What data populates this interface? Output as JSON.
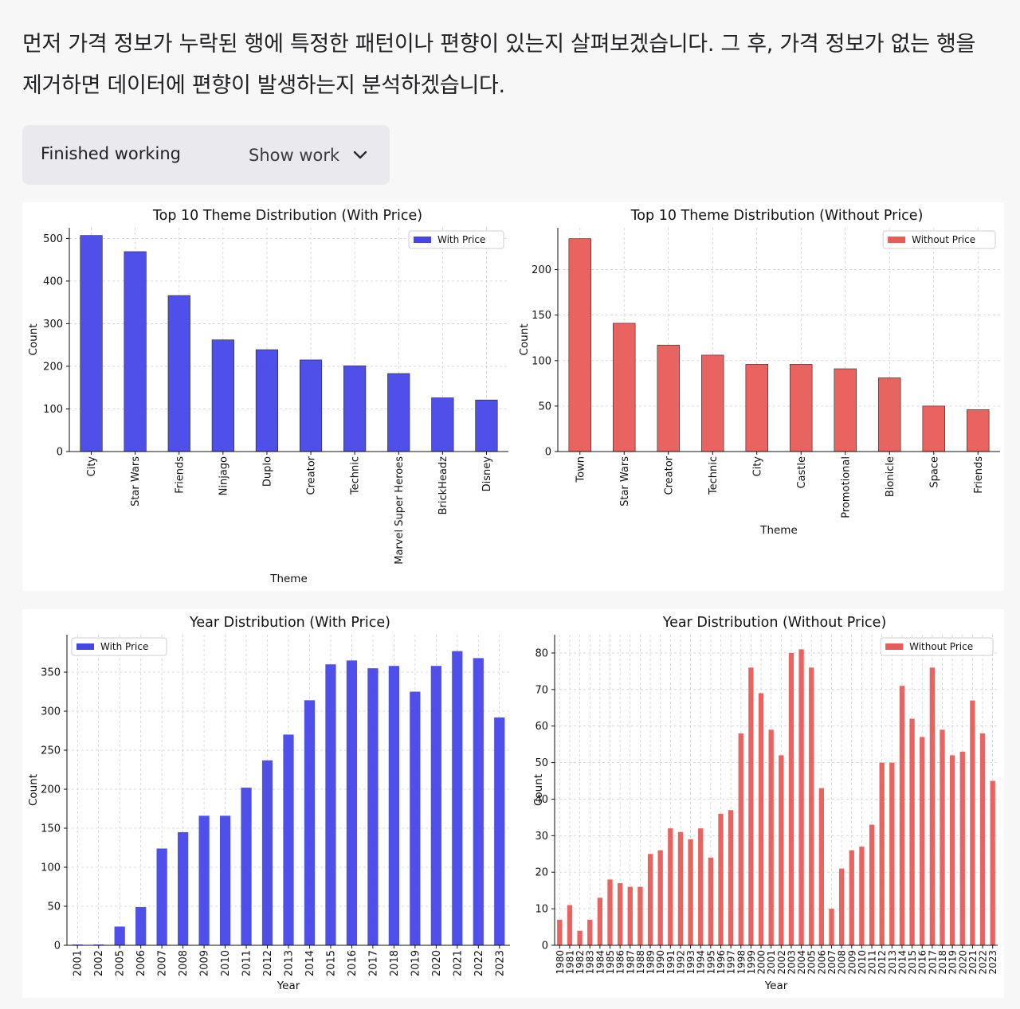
{
  "message": {
    "line1": "먼저 가격 정보가 누락된 행에 특정한 패턴이나 편향이 있는지 살펴보겠습니다. 그 후, 가격 정보가 없는 행을",
    "line2": "제거하면 데이터에 편향이 발생하는지 분석하겠습니다."
  },
  "status": {
    "label": "Finished working",
    "toggle_label": "Show work",
    "toggle_icon": "chevron-down-icon"
  },
  "colors": {
    "with_price": "#4646e8",
    "without_price": "#e85c58",
    "grid": "#d0d0d0"
  },
  "chart_data": [
    {
      "id": "theme-with",
      "type": "bar",
      "title": "Top 10 Theme Distribution (With Price)",
      "xlabel": "Theme",
      "ylabel": "Count",
      "legend": "With Price",
      "legend_position": "top-right",
      "grid": true,
      "categories": [
        "City",
        "Star Wars",
        "Friends",
        "Ninjago",
        "Duplo",
        "Creator",
        "Technic",
        "Marvel Super Heroes",
        "BrickHeadz",
        "Disney"
      ],
      "values": [
        507,
        469,
        366,
        262,
        239,
        215,
        201,
        183,
        126,
        121
      ],
      "ylim": [
        0,
        525
      ],
      "yticks": [
        0,
        100,
        200,
        300,
        400,
        500
      ]
    },
    {
      "id": "theme-without",
      "type": "bar",
      "title": "Top 10 Theme Distribution (Without Price)",
      "xlabel": "Theme",
      "ylabel": "Count",
      "legend": "Without Price",
      "legend_position": "top-right",
      "grid": true,
      "categories": [
        "Town",
        "Star Wars",
        "Creator",
        "Technic",
        "City",
        "Castle",
        "Promotional",
        "Bionicle",
        "Space",
        "Friends"
      ],
      "values": [
        234,
        141,
        117,
        106,
        96,
        96,
        91,
        81,
        50,
        46
      ],
      "ylim": [
        0,
        246
      ],
      "yticks": [
        0,
        50,
        100,
        150,
        200
      ]
    },
    {
      "id": "year-with",
      "type": "bar",
      "title": "Year Distribution (With Price)",
      "xlabel": "Year",
      "ylabel": "Count",
      "legend": "With Price",
      "legend_position": "top-left",
      "grid": true,
      "categories": [
        "2001",
        "2002",
        "2005",
        "2006",
        "2007",
        "2008",
        "2009",
        "2010",
        "2011",
        "2012",
        "2013",
        "2014",
        "2015",
        "2016",
        "2017",
        "2018",
        "2019",
        "2020",
        "2021",
        "2022",
        "2023"
      ],
      "values": [
        1,
        1,
        24,
        49,
        124,
        145,
        166,
        166,
        202,
        237,
        270,
        314,
        360,
        365,
        355,
        358,
        325,
        358,
        377,
        368,
        292
      ],
      "ylim": [
        0,
        398
      ],
      "yticks": [
        0,
        50,
        100,
        150,
        200,
        250,
        300,
        350
      ]
    },
    {
      "id": "year-without",
      "type": "bar",
      "title": "Year Distribution (Without Price)",
      "xlabel": "Year",
      "ylabel": "Count",
      "legend": "Without Price",
      "legend_position": "top-right",
      "grid": true,
      "categories": [
        "1980",
        "1981",
        "1982",
        "1983",
        "1984",
        "1985",
        "1986",
        "1987",
        "1988",
        "1989",
        "1990",
        "1991",
        "1992",
        "1993",
        "1994",
        "1995",
        "1996",
        "1997",
        "1998",
        "1999",
        "2000",
        "2001",
        "2002",
        "2003",
        "2004",
        "2005",
        "2006",
        "2007",
        "2008",
        "2009",
        "2010",
        "2011",
        "2012",
        "2013",
        "2014",
        "2015",
        "2016",
        "2017",
        "2018",
        "2019",
        "2020",
        "2021",
        "2022",
        "2023"
      ],
      "values": [
        7,
        11,
        4,
        7,
        13,
        18,
        17,
        16,
        16,
        25,
        26,
        32,
        31,
        29,
        32,
        24,
        36,
        37,
        58,
        76,
        69,
        59,
        52,
        80,
        81,
        76,
        43,
        10,
        21,
        26,
        27,
        33,
        50,
        50,
        71,
        62,
        57,
        76,
        59,
        52,
        53,
        67,
        58,
        45
      ],
      "ylim": [
        0,
        85
      ],
      "yticks": [
        0,
        10,
        20,
        30,
        40,
        50,
        60,
        70,
        80
      ]
    }
  ]
}
